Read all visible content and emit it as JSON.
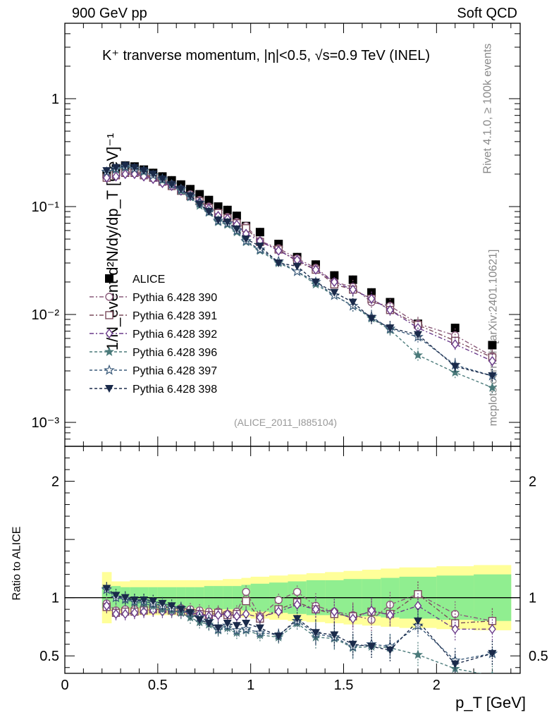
{
  "header": {
    "left": "900 GeV pp",
    "right": "Soft QCD"
  },
  "side_labels": {
    "rivet": "Rivet 4.1.0, ≥ 100k events",
    "mcplots": "mcplots.cern.ch [arXiv:2401.10621]"
  },
  "watermark": "(ALICE_2011_I885104)",
  "colors": {
    "ALICE": "#000000",
    "390": "#8a5a7a",
    "391": "#7a4a5a",
    "392": "#6a3a8a",
    "396": "#4a7a7a",
    "397": "#3a5a7a",
    "398": "#1a2a4a",
    "band_green": "#90ee90",
    "band_yellow": "#ffff99"
  },
  "chart_data": [
    {
      "type": "scatter",
      "title": "K⁺ tranverse momentum, |η|<0.5, √s=0.9 TeV (INEL)",
      "xlabel": "p_T [GeV]",
      "ylabel": "1/N_event d²N/dy/dp_T [GeV]⁻¹",
      "yscale": "log",
      "ylim": [
        0.0006,
        5
      ],
      "xlim": [
        0,
        2.45
      ],
      "yticks": [
        {
          "v": 0.001,
          "label": "10⁻³"
        },
        {
          "v": 0.01,
          "label": "10⁻²"
        },
        {
          "v": 0.1,
          "label": "10⁻¹"
        },
        {
          "v": 1,
          "label": "1"
        }
      ],
      "legend_position": "bottom-left",
      "x": [
        0.225,
        0.275,
        0.325,
        0.375,
        0.425,
        0.475,
        0.525,
        0.575,
        0.625,
        0.675,
        0.725,
        0.775,
        0.825,
        0.875,
        0.925,
        0.975,
        1.05,
        1.15,
        1.25,
        1.35,
        1.45,
        1.55,
        1.65,
        1.75,
        1.9,
        2.1,
        2.3
      ],
      "series": [
        {
          "name": "ALICE",
          "key": "ALICE",
          "values": [
            0.2,
            0.225,
            0.24,
            0.235,
            0.22,
            0.205,
            0.19,
            0.175,
            0.16,
            0.145,
            0.13,
            0.115,
            0.1,
            0.093,
            0.082,
            0.066,
            0.058,
            0.045,
            0.034,
            0.029,
            0.023,
            0.021,
            0.016,
            0.013,
            0.0082,
            0.0075,
            0.0052
          ]
        },
        {
          "name": "Pythia 6.428 390",
          "key": "390",
          "values": [
            0.19,
            0.2,
            0.21,
            0.21,
            0.2,
            0.19,
            0.175,
            0.16,
            0.145,
            0.13,
            0.115,
            0.1,
            0.088,
            0.08,
            0.072,
            0.066,
            0.048,
            0.041,
            0.033,
            0.027,
            0.02,
            0.018,
            0.013,
            0.012,
            0.0082,
            0.0064,
            0.0041
          ]
        },
        {
          "name": "Pythia 6.428 391",
          "key": "391",
          "values": [
            0.185,
            0.195,
            0.205,
            0.205,
            0.195,
            0.185,
            0.17,
            0.155,
            0.14,
            0.125,
            0.112,
            0.097,
            0.087,
            0.078,
            0.07,
            0.063,
            0.047,
            0.04,
            0.031,
            0.026,
            0.019,
            0.017,
            0.014,
            0.011,
            0.008,
            0.0057,
            0.004
          ]
        },
        {
          "name": "Pythia 6.428 392",
          "key": "392",
          "values": [
            0.185,
            0.19,
            0.2,
            0.2,
            0.19,
            0.18,
            0.165,
            0.155,
            0.14,
            0.125,
            0.11,
            0.096,
            0.082,
            0.077,
            0.068,
            0.056,
            0.048,
            0.039,
            0.032,
            0.026,
            0.02,
            0.017,
            0.014,
            0.011,
            0.0075,
            0.0053,
            0.0037
          ]
        },
        {
          "name": "Pythia 6.428 396",
          "key": "396",
          "values": [
            0.21,
            0.22,
            0.23,
            0.225,
            0.21,
            0.195,
            0.175,
            0.16,
            0.14,
            0.122,
            0.102,
            0.088,
            0.072,
            0.068,
            0.058,
            0.047,
            0.039,
            0.03,
            0.025,
            0.019,
            0.015,
            0.012,
            0.0092,
            0.0072,
            0.0042,
            0.0029,
            0.0021
          ]
        },
        {
          "name": "Pythia 6.428 397",
          "key": "397",
          "values": [
            0.21,
            0.225,
            0.235,
            0.225,
            0.215,
            0.195,
            0.18,
            0.16,
            0.145,
            0.125,
            0.108,
            0.09,
            0.074,
            0.07,
            0.06,
            0.048,
            0.04,
            0.031,
            0.025,
            0.02,
            0.015,
            0.012,
            0.0095,
            0.0074,
            0.0062,
            0.0034,
            0.0027
          ]
        },
        {
          "name": "Pythia 6.428 398",
          "key": "398",
          "values": [
            0.215,
            0.23,
            0.24,
            0.23,
            0.215,
            0.2,
            0.18,
            0.16,
            0.145,
            0.126,
            0.105,
            0.09,
            0.075,
            0.072,
            0.062,
            0.05,
            0.043,
            0.03,
            0.028,
            0.02,
            0.016,
            0.013,
            0.0092,
            0.0075,
            0.0065,
            0.0033,
            0.0027
          ]
        }
      ]
    },
    {
      "type": "scatter",
      "title": "",
      "xlabel": "p_T [GeV]",
      "ylabel": "Ratio to ALICE",
      "ylim": [
        0.35,
        2.3
      ],
      "xlim": [
        0,
        2.45
      ],
      "yticks": [
        {
          "v": 0.5,
          "label": "0.5"
        },
        {
          "v": 1,
          "label": "1"
        },
        {
          "v": 2,
          "label": "2"
        }
      ],
      "xticks": [
        {
          "v": 0,
          "label": "0"
        },
        {
          "v": 0.5,
          "label": "0.5"
        },
        {
          "v": 1,
          "label": "1"
        },
        {
          "v": 1.5,
          "label": "1.5"
        },
        {
          "v": 2,
          "label": "2"
        }
      ],
      "reference_line": 1,
      "band_edges": [
        0.2,
        0.25,
        0.3,
        0.35,
        0.4,
        0.45,
        0.5,
        0.55,
        0.6,
        0.65,
        0.7,
        0.75,
        0.8,
        0.85,
        0.9,
        0.95,
        1.0,
        1.1,
        1.2,
        1.3,
        1.4,
        1.5,
        1.6,
        1.7,
        1.8,
        2.0,
        2.2,
        2.4
      ],
      "band_green": [
        0.09,
        0.1,
        0.09,
        0.09,
        0.09,
        0.09,
        0.09,
        0.09,
        0.09,
        0.09,
        0.09,
        0.1,
        0.1,
        0.1,
        0.1,
        0.11,
        0.12,
        0.13,
        0.14,
        0.15,
        0.15,
        0.16,
        0.16,
        0.17,
        0.18,
        0.19,
        0.2
      ],
      "band_yellow": [
        0.22,
        0.14,
        0.14,
        0.15,
        0.15,
        0.15,
        0.15,
        0.15,
        0.15,
        0.15,
        0.15,
        0.15,
        0.15,
        0.16,
        0.16,
        0.17,
        0.18,
        0.19,
        0.2,
        0.21,
        0.22,
        0.23,
        0.24,
        0.25,
        0.26,
        0.27,
        0.28
      ],
      "x": [
        0.225,
        0.275,
        0.325,
        0.375,
        0.425,
        0.475,
        0.525,
        0.575,
        0.625,
        0.675,
        0.725,
        0.775,
        0.825,
        0.875,
        0.925,
        0.975,
        1.05,
        1.15,
        1.25,
        1.35,
        1.45,
        1.55,
        1.65,
        1.75,
        1.9,
        2.1,
        2.3
      ],
      "series": [
        {
          "name": "Pythia 6.428 390",
          "key": "390",
          "values": [
            0.95,
            0.89,
            0.9,
            0.9,
            0.91,
            0.93,
            0.92,
            0.91,
            0.91,
            0.9,
            0.89,
            0.88,
            0.88,
            0.86,
            0.88,
            1.05,
            0.84,
            0.98,
            1.05,
            0.93,
            0.88,
            0.85,
            0.81,
            0.94,
            1.03,
            0.86,
            0.8
          ]
        },
        {
          "name": "Pythia 6.428 391",
          "key": "391",
          "values": [
            0.92,
            0.87,
            0.88,
            0.88,
            0.89,
            0.9,
            0.9,
            0.89,
            0.88,
            0.87,
            0.86,
            0.85,
            0.87,
            0.85,
            0.86,
            0.97,
            0.82,
            0.9,
            0.96,
            0.9,
            0.86,
            0.84,
            0.88,
            0.86,
            1.03,
            0.78,
            0.8
          ]
        },
        {
          "name": "Pythia 6.428 392",
          "key": "392",
          "values": [
            0.93,
            0.86,
            0.86,
            0.87,
            0.88,
            0.89,
            0.88,
            0.88,
            0.88,
            0.87,
            0.86,
            0.84,
            0.85,
            0.86,
            0.84,
            0.86,
            0.83,
            0.88,
            0.94,
            0.9,
            0.88,
            0.82,
            0.89,
            0.85,
            0.93,
            0.73,
            0.73
          ]
        },
        {
          "name": "Pythia 6.428 396",
          "key": "396",
          "values": [
            1.08,
            1.0,
            0.98,
            0.96,
            0.95,
            0.93,
            0.9,
            0.89,
            0.87,
            0.83,
            0.79,
            0.77,
            0.72,
            0.74,
            0.7,
            0.72,
            0.68,
            0.66,
            0.78,
            0.66,
            0.65,
            0.57,
            0.58,
            0.57,
            0.51,
            0.39,
            0.33
          ]
        },
        {
          "name": "Pythia 6.428 397",
          "key": "397",
          "values": [
            1.07,
            1.0,
            0.99,
            0.97,
            0.97,
            0.95,
            0.93,
            0.91,
            0.91,
            0.87,
            0.83,
            0.8,
            0.73,
            0.76,
            0.72,
            0.73,
            0.7,
            0.68,
            0.8,
            0.69,
            0.66,
            0.58,
            0.6,
            0.58,
            0.76,
            0.46,
            0.52
          ]
        },
        {
          "name": "Pythia 6.428 398",
          "key": "398",
          "values": [
            1.08,
            1.02,
            1.0,
            0.98,
            0.98,
            0.97,
            0.95,
            0.93,
            0.9,
            0.87,
            0.81,
            0.78,
            0.74,
            0.78,
            0.76,
            0.78,
            0.74,
            0.67,
            0.82,
            0.7,
            0.68,
            0.6,
            0.58,
            0.55,
            0.8,
            0.43,
            0.52
          ]
        }
      ]
    }
  ]
}
